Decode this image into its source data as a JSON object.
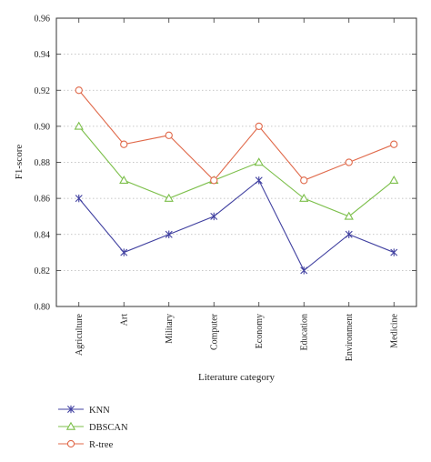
{
  "chart_data": {
    "type": "line",
    "ylabel": "F1-score",
    "xlabel": "Literature category",
    "categories": [
      "Agriculture",
      "Art",
      "Military",
      "Computer",
      "Economy",
      "Education",
      "Environment",
      "Medicine"
    ],
    "ylim": [
      0.8,
      0.96
    ],
    "yticks": [
      "0.80",
      "0.82",
      "0.84",
      "0.86",
      "0.88",
      "0.90",
      "0.92",
      "0.94",
      "0.96"
    ],
    "grid": "horizontal dotted",
    "legend_position": "bottom-left",
    "series": [
      {
        "name": "KNN",
        "color": "#4040a0",
        "marker": "asterisk",
        "values": [
          0.86,
          0.83,
          0.84,
          0.85,
          0.87,
          0.82,
          0.84,
          0.83
        ]
      },
      {
        "name": "DBSCAN",
        "color": "#7cbf4a",
        "marker": "triangle",
        "values": [
          0.9,
          0.87,
          0.86,
          0.87,
          0.88,
          0.86,
          0.85,
          0.87
        ]
      },
      {
        "name": "R-tree",
        "color": "#e0694a",
        "marker": "circle",
        "values": [
          0.92,
          0.89,
          0.895,
          0.87,
          0.9,
          0.87,
          0.88,
          0.89
        ]
      }
    ]
  }
}
